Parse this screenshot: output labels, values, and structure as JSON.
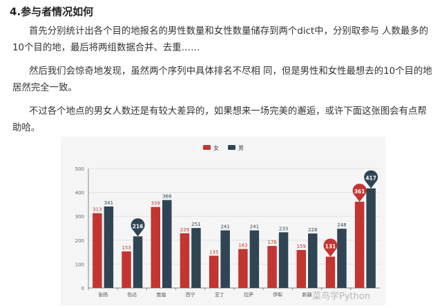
{
  "article": {
    "heading": "4.参与者情况如何",
    "para1": "首先分别统计出各个目的地报名的男性数量和女性数量储存到两个dict中，分别取参与 人数最多的10个目的地，最后将两组数据合并、去重……",
    "para2": "然后我们会惊奇地发现，虽然两个序列中具体排名不尽相 同，但是男性和女性最想去的10个目的地居然完全一致。",
    "para3": "不过各个地点的男女人数还是有较大差异的，如果想来一场完美的邂逅，或许下面这张图会有点帮助哈。"
  },
  "watermark": "菜鸟学Python",
  "colors": {
    "female": "#c23531",
    "male": "#2f4554"
  },
  "chart_data": {
    "type": "bar",
    "categories": [
      "张扬",
      "色达",
      "敦煌",
      "西宁",
      "亚丁",
      "拉萨",
      "伊犁",
      "新疆",
      "",
      ""
    ],
    "series": [
      {
        "name": "女",
        "values": [
          313,
          153,
          339,
          229,
          135,
          163,
          176,
          159,
          131,
          361
        ]
      },
      {
        "name": "男",
        "values": [
          341,
          216,
          368,
          251,
          241,
          241,
          233,
          228,
          248,
          417
        ]
      }
    ],
    "ylim": [
      0,
      500
    ],
    "yticks": [
      0,
      100,
      200,
      300,
      400,
      500
    ],
    "markers": [
      {
        "series": "男",
        "index": 1,
        "label": "216"
      },
      {
        "series": "女",
        "index": 8,
        "label": "131"
      },
      {
        "series": "女",
        "index": 9,
        "label": "361"
      },
      {
        "series": "男",
        "index": 9,
        "label": "417"
      }
    ],
    "legend_position": "top"
  }
}
